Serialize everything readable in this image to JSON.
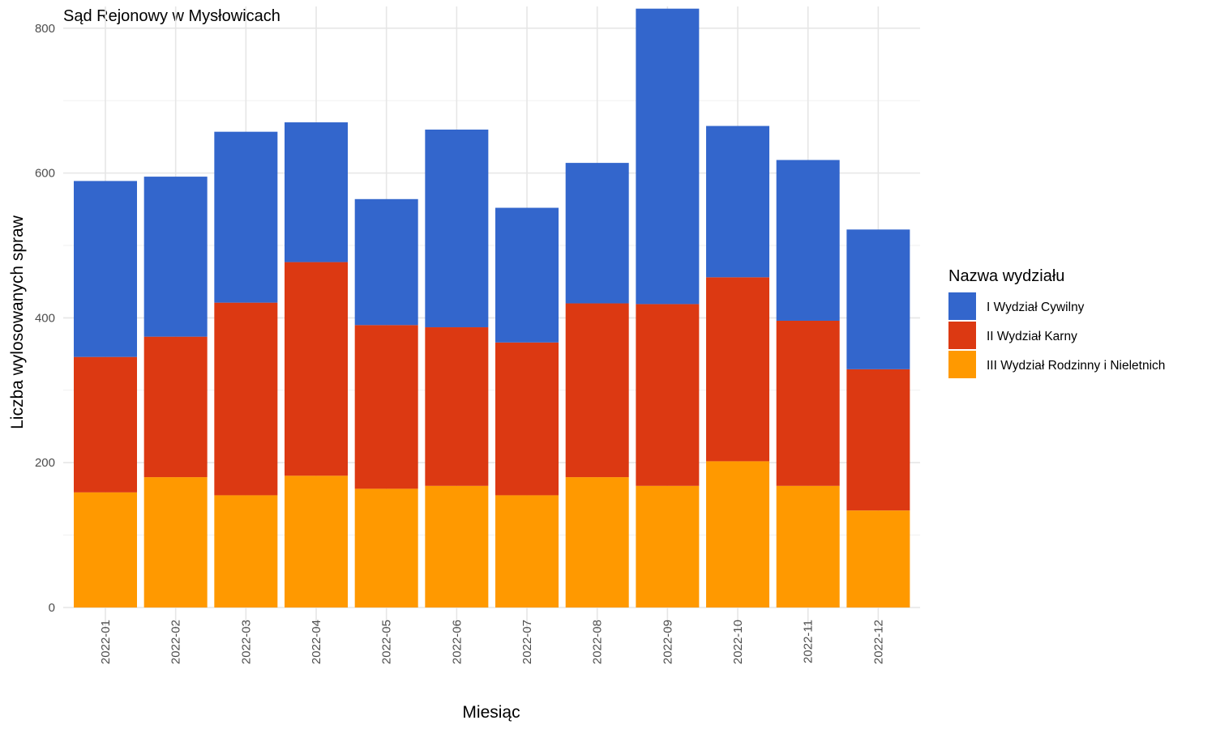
{
  "chart_data": {
    "type": "bar",
    "stacked": true,
    "title": "Sąd Rejonowy w Mysłowicach",
    "xlabel": "Miesiąc",
    "ylabel": "Liczba wylosowanych spraw",
    "ylim": [
      0,
      830
    ],
    "y_ticks": [
      0,
      200,
      400,
      600,
      800
    ],
    "grid": true,
    "legend_position": "right",
    "legend_title": "Nazwa wydziału",
    "categories": [
      "2022-01",
      "2022-02",
      "2022-03",
      "2022-04",
      "2022-05",
      "2022-06",
      "2022-07",
      "2022-08",
      "2022-09",
      "2022-10",
      "2022-11",
      "2022-12"
    ],
    "series": [
      {
        "name": "III Wydział Rodzinny i Nieletnich",
        "color": "#FF9900",
        "values": [
          159,
          180,
          155,
          182,
          164,
          168,
          155,
          180,
          168,
          202,
          168,
          134
        ]
      },
      {
        "name": "II Wydział Karny",
        "color": "#DC3912",
        "values": [
          187,
          194,
          266,
          295,
          226,
          219,
          211,
          240,
          251,
          254,
          228,
          195
        ]
      },
      {
        "name": "I Wydział Cywilny",
        "color": "#3366CC",
        "values": [
          243,
          221,
          236,
          193,
          174,
          273,
          186,
          194,
          408,
          209,
          222,
          193
        ]
      }
    ],
    "legend_order": [
      "I Wydział Cywilny",
      "II Wydział Karny",
      "III Wydział Rodzinny i Nieletnich"
    ]
  }
}
